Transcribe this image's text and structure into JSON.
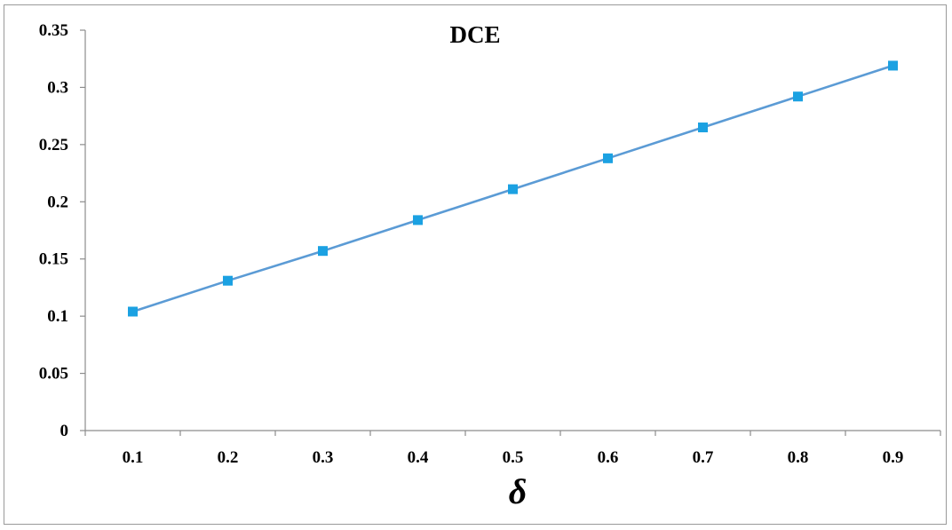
{
  "chart_data": {
    "type": "line",
    "title": "DCE",
    "xlabel": "δ",
    "ylabel": "",
    "categories": [
      "0.1",
      "0.2",
      "0.3",
      "0.4",
      "0.5",
      "0.6",
      "0.7",
      "0.8",
      "0.9"
    ],
    "series": [
      {
        "values": [
          0.104,
          0.131,
          0.157,
          0.184,
          0.211,
          0.238,
          0.265,
          0.292,
          0.319
        ],
        "line_color": "#5b9bd5",
        "marker_color": "#1ba1e2",
        "marker": "square"
      }
    ],
    "ylim": [
      0,
      0.35
    ],
    "yticks": [
      "0",
      "0.05",
      "0.1",
      "0.15",
      "0.2",
      "0.25",
      "0.3",
      "0.35"
    ],
    "grid": false,
    "legend": "none"
  }
}
